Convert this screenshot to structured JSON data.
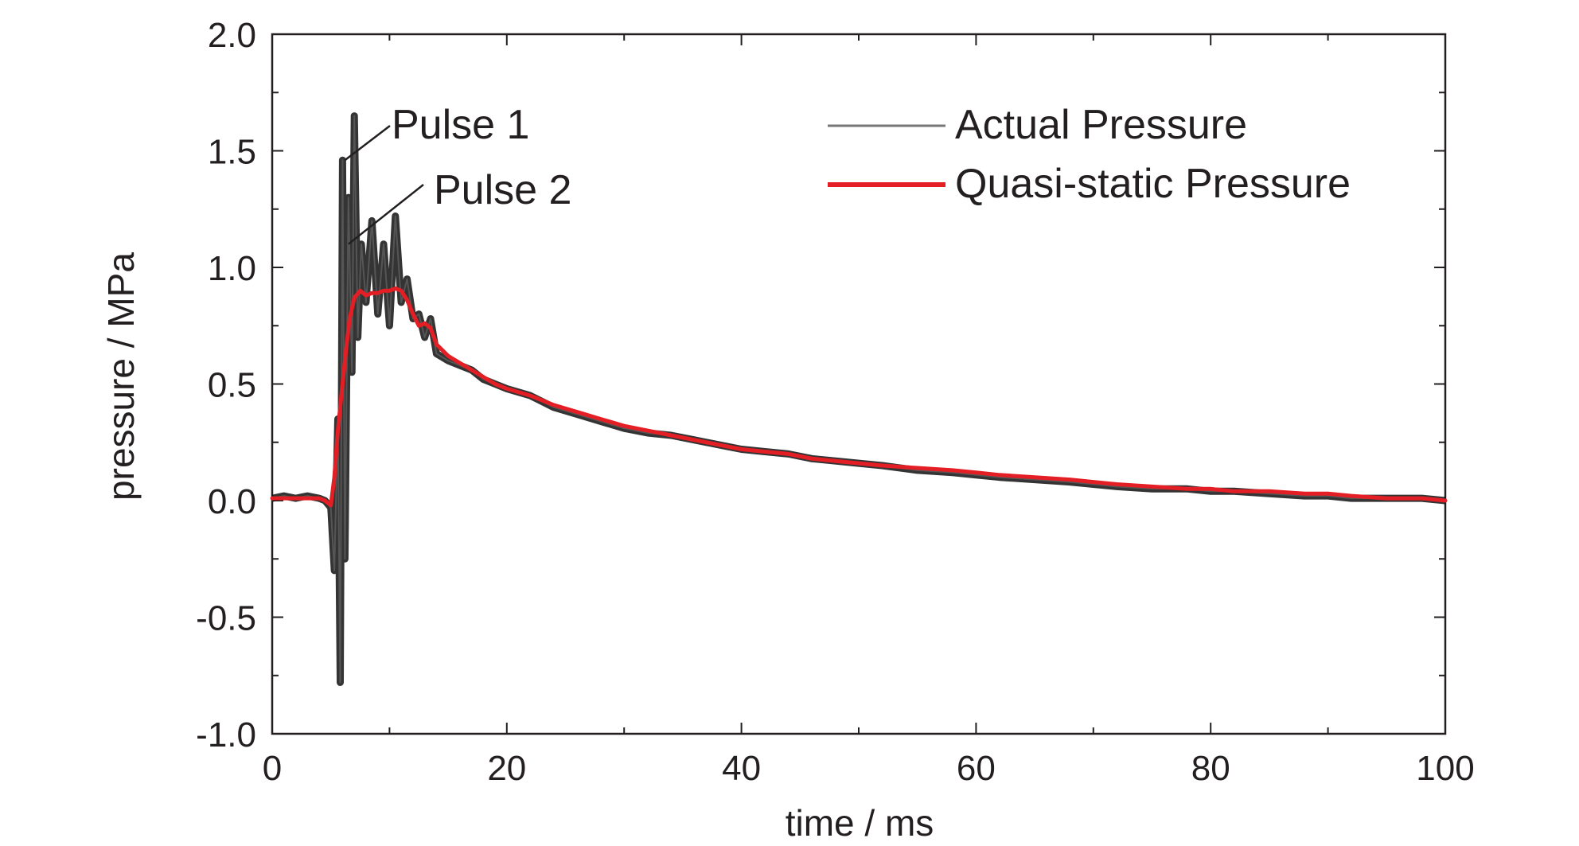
{
  "chart_data": {
    "type": "line",
    "xlabel": "time / ms",
    "ylabel": "pressure / MPa",
    "xlim": [
      0,
      100
    ],
    "ylim": [
      -1.0,
      2.0
    ],
    "x_ticks": [
      "0",
      "20",
      "40",
      "60",
      "80",
      "100"
    ],
    "x_tick_values": [
      0,
      20,
      40,
      60,
      80,
      100
    ],
    "y_ticks": [
      "-1.0",
      "-0.5",
      "0.0",
      "0.5",
      "1.0",
      "1.5",
      "2.0"
    ],
    "y_tick_values": [
      -1.0,
      -0.5,
      0.0,
      0.5,
      1.0,
      1.5,
      2.0
    ],
    "grid": false,
    "legend_position": "top-right",
    "annotations": [
      {
        "text": "Pulse 1",
        "x": 6.2,
        "y": 1.46
      },
      {
        "text": "Pulse 2",
        "x": 6.5,
        "y": 1.1
      }
    ],
    "series": [
      {
        "name": "Actual Pressure",
        "color": "#555555",
        "style": "noisy",
        "x": [
          0,
          1,
          2,
          3,
          4,
          4.5,
          5,
          5.3,
          5.6,
          5.8,
          6.0,
          6.2,
          6.5,
          6.8,
          7.0,
          7.3,
          7.6,
          8,
          8.5,
          9,
          9.5,
          10,
          10.5,
          11,
          11.5,
          12,
          12.5,
          13,
          13.5,
          14,
          15,
          16,
          17,
          18,
          19,
          20,
          22,
          24,
          26,
          28,
          30,
          32,
          34,
          36,
          38,
          40,
          42,
          44,
          46,
          48,
          50,
          52,
          55,
          58,
          60,
          62,
          65,
          68,
          70,
          72,
          75,
          78,
          80,
          82,
          85,
          88,
          90,
          92,
          95,
          98,
          100
        ],
        "values": [
          0.01,
          0.02,
          0.01,
          0.02,
          0.01,
          0.0,
          -0.03,
          -0.3,
          0.35,
          -0.78,
          1.46,
          -0.25,
          1.3,
          0.55,
          1.65,
          0.7,
          1.1,
          0.85,
          1.2,
          0.8,
          1.1,
          0.75,
          1.22,
          0.85,
          0.95,
          0.78,
          0.8,
          0.7,
          0.78,
          0.63,
          0.6,
          0.58,
          0.56,
          0.52,
          0.5,
          0.48,
          0.45,
          0.4,
          0.37,
          0.34,
          0.31,
          0.29,
          0.28,
          0.26,
          0.24,
          0.22,
          0.21,
          0.2,
          0.18,
          0.17,
          0.16,
          0.15,
          0.13,
          0.12,
          0.11,
          0.1,
          0.09,
          0.08,
          0.07,
          0.06,
          0.05,
          0.05,
          0.04,
          0.04,
          0.03,
          0.02,
          0.02,
          0.01,
          0.01,
          0.01,
          0.0
        ]
      },
      {
        "name": "Quasi-static Pressure",
        "color": "#e31e24",
        "style": "smooth",
        "x": [
          0,
          1,
          2,
          3,
          4,
          4.5,
          5,
          5.3,
          5.6,
          6.0,
          6.3,
          6.6,
          7.0,
          7.5,
          8,
          8.5,
          9,
          9.5,
          10,
          10.5,
          11,
          11.5,
          12,
          12.5,
          13,
          13.5,
          14,
          15,
          16,
          17,
          18,
          19,
          20,
          22,
          24,
          26,
          28,
          30,
          32,
          34,
          36,
          38,
          40,
          42,
          44,
          46,
          48,
          50,
          52,
          55,
          58,
          60,
          62,
          65,
          68,
          70,
          72,
          75,
          78,
          80,
          82,
          85,
          88,
          90,
          92,
          95,
          98,
          100
        ],
        "values": [
          0.01,
          0.01,
          0.01,
          0.01,
          0.01,
          0.0,
          -0.02,
          0.1,
          0.3,
          0.5,
          0.65,
          0.78,
          0.87,
          0.9,
          0.88,
          0.89,
          0.89,
          0.9,
          0.9,
          0.91,
          0.9,
          0.86,
          0.8,
          0.75,
          0.76,
          0.74,
          0.67,
          0.62,
          0.59,
          0.56,
          0.53,
          0.5,
          0.48,
          0.45,
          0.41,
          0.38,
          0.35,
          0.32,
          0.3,
          0.28,
          0.26,
          0.24,
          0.22,
          0.21,
          0.2,
          0.18,
          0.17,
          0.16,
          0.15,
          0.14,
          0.13,
          0.12,
          0.11,
          0.1,
          0.09,
          0.08,
          0.07,
          0.06,
          0.05,
          0.05,
          0.04,
          0.04,
          0.03,
          0.03,
          0.02,
          0.01,
          0.01,
          0.0
        ]
      }
    ]
  }
}
